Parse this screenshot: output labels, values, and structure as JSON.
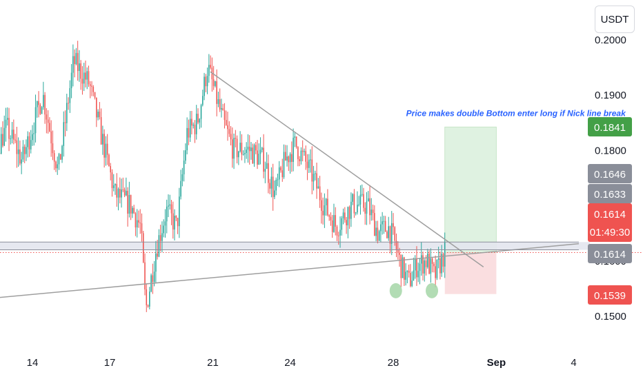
{
  "currency_label": "USDT",
  "colors": {
    "up": "#26a69a",
    "down": "#ef5350",
    "trend_line": "#9e9e9e",
    "annotation": "#2962ff",
    "target_zone": "#d9f0dc",
    "stop_zone": "#fadadd",
    "marker": "#a5d6a7"
  },
  "chart_data": {
    "type": "candlestick",
    "symbol_currency": "USDT",
    "ylim": [
      0.146,
      0.201
    ],
    "xlim": [
      "Aug 10",
      "Sep 4"
    ],
    "x_ticks": [
      {
        "label": "14",
        "date": "Aug 14"
      },
      {
        "label": "17",
        "date": "Aug 17"
      },
      {
        "label": "21",
        "date": "Aug 21"
      },
      {
        "label": "24",
        "date": "Aug 24"
      },
      {
        "label": "28",
        "date": "Aug 28"
      },
      {
        "label": "Sep",
        "date": "Sep 1"
      },
      {
        "label": "4",
        "date": "Sep 4"
      }
    ],
    "y_ticks": [
      {
        "label": "0.2000",
        "value": 0.2
      },
      {
        "label": "0.1900",
        "value": 0.19
      },
      {
        "label": "0.1800",
        "value": 0.18
      },
      {
        "label": "0.1600",
        "value": 0.16
      },
      {
        "label": "0.1500",
        "value": 0.15
      }
    ],
    "price_tags": [
      {
        "label": "0.1841",
        "value": 0.1841,
        "style": "green"
      },
      {
        "label": "0.1646",
        "value": 0.1646,
        "style": "gray"
      },
      {
        "label": "0.1633",
        "value": 0.1633,
        "style": "gray"
      },
      {
        "label": "0.1614",
        "sublabel": "01:49:30",
        "value": 0.1614,
        "style": "red-current"
      },
      {
        "label": "0.1614",
        "value": 0.1614,
        "style": "gray"
      },
      {
        "label": "0.1539",
        "value": 0.1539,
        "style": "red"
      }
    ],
    "price_path": [
      [
        "Aug 10",
        0.177
      ],
      [
        "Aug 10.6",
        0.195
      ],
      [
        "Aug 11.2",
        0.184
      ],
      [
        "Aug 11.8",
        0.19
      ],
      [
        "Aug 12.4",
        0.178
      ],
      [
        "Aug 13",
        0.184
      ],
      [
        "Aug 13.6",
        0.178
      ],
      [
        "Aug 14.4",
        0.19
      ],
      [
        "Aug 15",
        0.176
      ],
      [
        "Aug 15.6",
        0.196
      ],
      [
        "Aug 16.2",
        0.192
      ],
      [
        "Aug 16.6",
        0.184
      ],
      [
        "Aug 17.2",
        0.172
      ],
      [
        "Aug 17.8",
        0.17
      ],
      [
        "Aug 18.2",
        0.166
      ],
      [
        "Aug 18.4",
        0.151
      ],
      [
        "Aug 18.8",
        0.162
      ],
      [
        "Aug 19.2",
        0.169
      ],
      [
        "Aug 19.6",
        0.166
      ],
      [
        "Aug 20",
        0.183
      ],
      [
        "Aug 20.4",
        0.185
      ],
      [
        "Aug 20.8",
        0.195
      ],
      [
        "Aug 21.4",
        0.185
      ],
      [
        "Aug 21.8",
        0.18
      ],
      [
        "Aug 22.4",
        0.18
      ],
      [
        "Aug 23",
        0.178
      ],
      [
        "Aug 23.4",
        0.172
      ],
      [
        "Aug 23.8",
        0.178
      ],
      [
        "Aug 24.2",
        0.181
      ],
      [
        "Aug 24.8",
        0.176
      ],
      [
        "Aug 25.3",
        0.17
      ],
      [
        "Aug 25.8",
        0.166
      ],
      [
        "Aug 26.4",
        0.17
      ],
      [
        "Aug 27",
        0.17
      ],
      [
        "Aug 27.4",
        0.165
      ],
      [
        "Aug 27.8",
        0.166
      ],
      [
        "Aug 28",
        0.164
      ],
      [
        "Aug 28.3",
        0.159
      ],
      [
        "Aug 28.6",
        0.156
      ],
      [
        "Aug 28.9",
        0.159
      ],
      [
        "Aug 29.3",
        0.16
      ],
      [
        "Aug 29.6",
        0.157
      ],
      [
        "Aug 30",
        0.1614
      ]
    ],
    "trendlines": [
      {
        "name": "descending-trendline",
        "from": [
          "Aug 20.9",
          0.1941
        ],
        "to": [
          "Aug 31.5",
          0.1588
        ]
      },
      {
        "name": "ascending-trendline",
        "from": [
          "Aug 10",
          0.1521
        ],
        "to": [
          "Sep 4.2",
          0.163
        ]
      },
      {
        "name": "resistance-line-1",
        "from": [
          "Aug 10",
          0.1633
        ],
        "to": [
          "Sep 4.2",
          0.1633
        ]
      },
      {
        "name": "resistance-line-2",
        "from": [
          "Aug 10",
          0.1619
        ],
        "to": [
          "Sep 4.2",
          0.1619
        ]
      }
    ],
    "resistance_band": {
      "from": 0.1619,
      "to": 0.1633
    },
    "current_price_line": 0.1614,
    "long_position": {
      "x_start": "Aug 30",
      "x_end": "Sep 1",
      "entry": 0.1614,
      "target": 0.1841,
      "stop": 0.1539
    },
    "double_bottom_markers": [
      {
        "date": "Aug 28.1",
        "value": 0.1545
      },
      {
        "date": "Aug 29.5",
        "value": 0.1545
      }
    ],
    "annotation": {
      "text": "Price makes double Bottom enter long if Nick line break",
      "date": "Aug 28.5",
      "value": 0.1861
    }
  }
}
